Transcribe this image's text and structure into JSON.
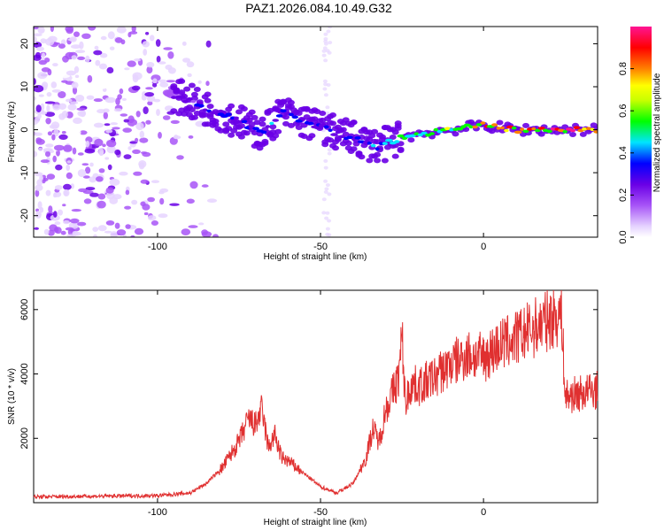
{
  "title": "PAZ1.2026.084.10.49.G32",
  "chart_data": [
    {
      "type": "heatmap",
      "name": "spectrogram",
      "xlabel": "Height of straight line (km)",
      "ylabel": "Frequency (Hz)",
      "xlim": [
        -138,
        35
      ],
      "ylim": [
        -25,
        24
      ],
      "xticks": [
        -100,
        -50,
        0
      ],
      "yticks": [
        20,
        10,
        0,
        -10,
        -20
      ],
      "colorbar": {
        "label": "Normalized spectral amplitude",
        "range": [
          0,
          1
        ],
        "ticks": [
          "0.0",
          "0.2",
          "0.4",
          "0.6",
          "0.8"
        ],
        "colors": [
          "#ffffff",
          "#e6d4ff",
          "#a855f7",
          "#6a00e6",
          "#0000ff",
          "#00e5ff",
          "#00ff00",
          "#ffff00",
          "#ff8000",
          "#ff0000",
          "#ff1493"
        ]
      },
      "signal_track": {
        "x": [
          -95,
          -85,
          -75,
          -68,
          -62,
          -55,
          -48,
          -40,
          -32,
          -26,
          -20,
          -10,
          0,
          10,
          20,
          35
        ],
        "frequency": [
          8,
          5,
          2,
          -1,
          4,
          2,
          0,
          -2,
          -4,
          -2,
          -1,
          0,
          1,
          0,
          0,
          0
        ],
        "amplitude": [
          0.3,
          0.35,
          0.4,
          0.4,
          0.45,
          0.4,
          0.4,
          0.4,
          0.45,
          0.5,
          0.6,
          0.7,
          0.85,
          0.8,
          0.9,
          0.95
        ]
      }
    },
    {
      "type": "line",
      "name": "snr",
      "xlabel": "Height of straight line (km)",
      "ylabel": "SNR (10 * v/v)",
      "xlim": [
        -138,
        35
      ],
      "ylim": [
        0,
        6600
      ],
      "xticks": [
        -100,
        -50,
        0
      ],
      "yticks": [
        2000,
        4000,
        6000
      ],
      "color": "#e03030",
      "x": [
        -138,
        -120,
        -100,
        -90,
        -85,
        -80,
        -75,
        -72,
        -70,
        -68,
        -66,
        -64,
        -62,
        -60,
        -55,
        -50,
        -45,
        -40,
        -36,
        -34,
        -32,
        -30,
        -28,
        -26,
        -25,
        -24,
        -22,
        -20,
        -15,
        -10,
        -5,
        0,
        5,
        10,
        15,
        20,
        22,
        24,
        25,
        30,
        35
      ],
      "y": [
        180,
        200,
        220,
        300,
        600,
        1100,
        1900,
        2600,
        2400,
        2900,
        1700,
        2100,
        1400,
        1300,
        900,
        500,
        300,
        600,
        1400,
        2300,
        1900,
        2900,
        3400,
        3900,
        5200,
        3100,
        3700,
        3600,
        3900,
        4300,
        4600,
        4500,
        4900,
        5100,
        5400,
        5700,
        5800,
        5900,
        3300,
        3400,
        3500
      ]
    }
  ]
}
